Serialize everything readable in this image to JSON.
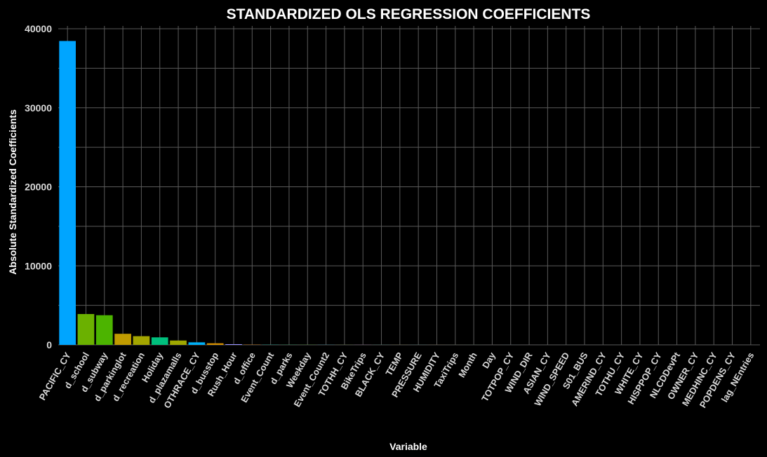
{
  "chart_data": {
    "type": "bar",
    "title": "STANDARDIZED OLS REGRESSION COEFFICIENTS",
    "xlabel": "Variable",
    "ylabel": "Absolute Standardized Coefficients",
    "ylim": [
      0,
      40000
    ],
    "yticks": [
      0,
      10000,
      20000,
      30000,
      40000
    ],
    "grid": true,
    "legend": "none",
    "categories": [
      "PACIFIC_CY",
      "d_school",
      "d_subway",
      "d_parkinglot",
      "d_recreation",
      "Holiday",
      "d_plazamalls",
      "OTHRACE_CY",
      "d_busstop",
      "Rush_Hour",
      "d_office",
      "Event_Count",
      "d_parks",
      "Weekday",
      "Event_Count2",
      "TOTHH_CY",
      "BikeTrips",
      "BLACK_CY",
      "TEMP",
      "PRESSURE",
      "HUMIDITY",
      "TaxiTrips",
      "Month",
      "Day",
      "TOTPOP_CY",
      "WIND_DIR",
      "ASIAN_CY",
      "WIND_SPEED",
      "S01_BUS",
      "AMERIND_CY",
      "TOTHU_CY",
      "WHITE_CY",
      "HISPPOP_CY",
      "NLCDDevPt",
      "OWNER_CY",
      "MEDHINC_CY",
      "POPDENS_CY",
      "lag_NEntries"
    ],
    "values": [
      38450,
      3900,
      3750,
      1400,
      1100,
      950,
      550,
      320,
      200,
      90,
      30,
      20,
      15,
      12,
      10,
      8,
      7,
      6,
      5,
      4,
      4,
      3,
      3,
      2,
      2,
      2,
      1,
      1,
      1,
      1,
      1,
      1,
      1,
      1,
      0.5,
      0.5,
      0.5,
      0.5
    ],
    "colors": [
      "#00a5ff",
      "#6bb100",
      "#4cb400",
      "#c09b00",
      "#a3a500",
      "#00bf7d",
      "#9ea700",
      "#00b0f6",
      "#d89000",
      "#9590ff",
      "#e7861b",
      "#00c1a3",
      "#00bc56",
      "#39b600",
      "#00bae0",
      "#85ad00",
      "#e76bf3",
      "#00bf96",
      "#b79f00",
      "#00c0b8",
      "#e58700",
      "#7cae00",
      "#00b81f",
      "#f8766d",
      "#00a9ff",
      "#f564e3",
      "#5a9cff",
      "#00c0af",
      "#c77cff",
      "#fd61d1",
      "#00bd5c",
      "#ff62bc",
      "#ff6c91",
      "#b983ff",
      "#ec69ef",
      "#f37b59",
      "#dc71fa",
      "#ff67a4"
    ]
  }
}
